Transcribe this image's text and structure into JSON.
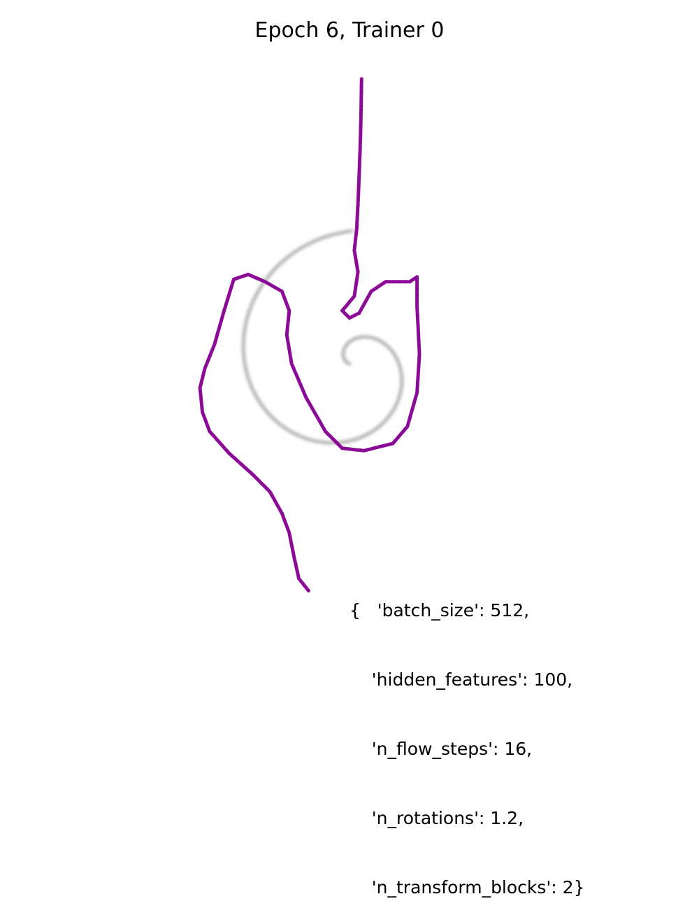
{
  "title": "Epoch 6, Trainer 0",
  "params_lines": [
    "{   'batch_size': 512,",
    "    'hidden_features': 100,",
    "    'n_flow_steps': 16,",
    "    'n_rotations': 1.2,",
    "    'n_transform_blocks': 2}"
  ],
  "colors": {
    "target": "#b5b5b5",
    "samples": "#8b0a96"
  },
  "chart_data": {
    "type": "scatter",
    "title": "Epoch 6, Trainer 0",
    "xlabel": "",
    "ylabel": "",
    "axis_visible": false,
    "grid": false,
    "xlim": [
      -1.2,
      1.2
    ],
    "ylim": [
      -1.2,
      1.2
    ],
    "series": [
      {
        "role": "target-spiral",
        "style": "grey, blurred",
        "spiral": {
          "n_rotations": 1.2,
          "r_start": 0.0,
          "r_end": 0.55,
          "theta_start_deg": 10
        }
      },
      {
        "role": "flow-samples",
        "style": "purple dots",
        "points": [
          [
            0.05,
            1.18
          ],
          [
            0.048,
            1.05
          ],
          [
            0.045,
            0.92
          ],
          [
            0.04,
            0.78
          ],
          [
            0.035,
            0.66
          ],
          [
            0.03,
            0.56
          ],
          [
            0.02,
            0.47
          ],
          [
            0.035,
            0.38
          ],
          [
            0.02,
            0.28
          ],
          [
            -0.03,
            0.22
          ],
          [
            0.0,
            0.19
          ],
          [
            0.04,
            0.21
          ],
          [
            0.09,
            0.3
          ],
          [
            0.15,
            0.34
          ],
          [
            0.25,
            0.34
          ],
          [
            0.28,
            0.36
          ],
          [
            0.28,
            0.24
          ],
          [
            0.29,
            0.04
          ],
          [
            0.28,
            -0.12
          ],
          [
            0.24,
            -0.26
          ],
          [
            0.18,
            -0.33
          ],
          [
            0.06,
            -0.36
          ],
          [
            -0.03,
            -0.35
          ],
          [
            -0.1,
            -0.28
          ],
          [
            -0.18,
            -0.14
          ],
          [
            -0.24,
            0.0
          ],
          [
            -0.26,
            0.12
          ],
          [
            -0.25,
            0.22
          ],
          [
            -0.28,
            0.3
          ],
          [
            -0.35,
            0.34
          ],
          [
            -0.42,
            0.37
          ],
          [
            -0.48,
            0.35
          ],
          [
            -0.52,
            0.22
          ],
          [
            -0.56,
            0.08
          ],
          [
            -0.6,
            -0.02
          ],
          [
            -0.62,
            -0.1
          ],
          [
            -0.61,
            -0.2
          ],
          [
            -0.58,
            -0.28
          ],
          [
            -0.5,
            -0.37
          ],
          [
            -0.4,
            -0.46
          ],
          [
            -0.33,
            -0.53
          ],
          [
            -0.28,
            -0.62
          ],
          [
            -0.25,
            -0.7
          ],
          [
            -0.23,
            -0.8
          ],
          [
            -0.21,
            -0.89
          ],
          [
            -0.17,
            -0.94
          ]
        ]
      }
    ]
  }
}
